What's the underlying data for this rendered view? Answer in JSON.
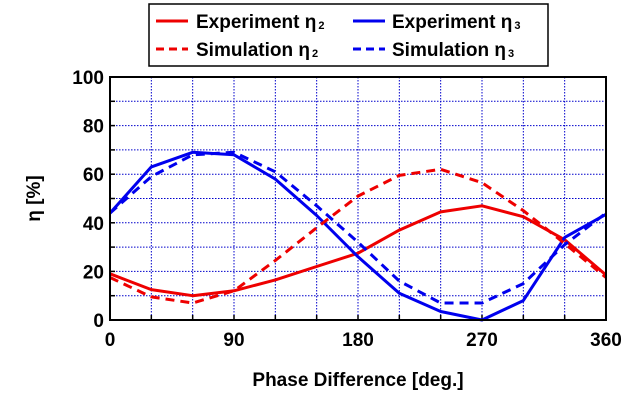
{
  "chart_data": {
    "type": "line",
    "title": "",
    "xlabel": "Phase Difference [deg.]",
    "ylabel": "η [%]",
    "xlim": [
      0,
      360
    ],
    "ylim": [
      0,
      100
    ],
    "xticks": [
      "0",
      "90",
      "180",
      "270",
      "360"
    ],
    "yticks": [
      "0",
      "20",
      "40",
      "60",
      "80",
      "100"
    ],
    "grid": true,
    "grid_color": "#0000cc",
    "legend_position": "top",
    "x": [
      0,
      30,
      60,
      90,
      120,
      150,
      180,
      210,
      240,
      270,
      300,
      330,
      360
    ],
    "series": [
      {
        "name": "Experiment η",
        "name_sub": "2",
        "color": "#ee0000",
        "dash": "solid",
        "values": [
          19,
          12.5,
          10,
          12,
          16.5,
          22,
          27.5,
          37,
          44.5,
          47,
          42.5,
          33,
          18.5
        ]
      },
      {
        "name": "Experiment η",
        "name_sub": "3",
        "color": "#0000ee",
        "dash": "solid",
        "values": [
          44,
          63,
          69,
          68,
          58,
          43,
          26,
          11,
          3.5,
          0,
          8,
          34,
          43.5
        ]
      },
      {
        "name": "Simulation η",
        "name_sub": "2",
        "color": "#ee0000",
        "dash": "dashed",
        "values": [
          17.5,
          9.5,
          7,
          12,
          24.5,
          38,
          51,
          59.5,
          62,
          56.5,
          45,
          31.5,
          17.5
        ]
      },
      {
        "name": "Simulation η",
        "name_sub": "3",
        "color": "#0000ee",
        "dash": "dashed",
        "values": [
          44,
          59,
          68,
          69,
          61,
          47,
          32,
          16,
          7,
          7,
          15,
          31,
          44
        ]
      }
    ]
  }
}
